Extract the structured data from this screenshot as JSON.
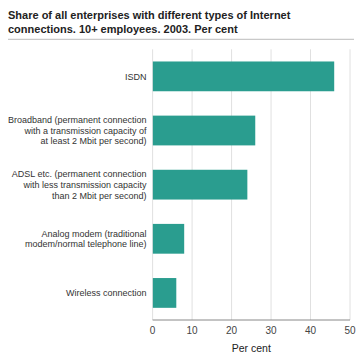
{
  "chart_data": {
    "type": "bar",
    "orientation": "horizontal",
    "title": "Share of all enterprises with different types of Internet\nconnections. 10+ employees. 2003. Per cent",
    "categories": [
      "Wireless connection",
      "Analog modem (traditional\nmodem/normal telephone line)",
      "ADSL etc. (permanent connection\nwith less transmission capacity\nthan 2 Mbit per second)",
      "Broadband (permanent connection\nwith a transmission capacity of\nat least 2 Mbit per second)",
      "ISDN"
    ],
    "values": [
      6,
      8,
      24,
      26,
      46
    ],
    "color": "#2a9d8f",
    "xlim": [
      0,
      50
    ],
    "xticks": [
      0,
      10,
      20,
      30,
      40,
      50
    ],
    "xlabel": "Per cent",
    "grid": true
  }
}
